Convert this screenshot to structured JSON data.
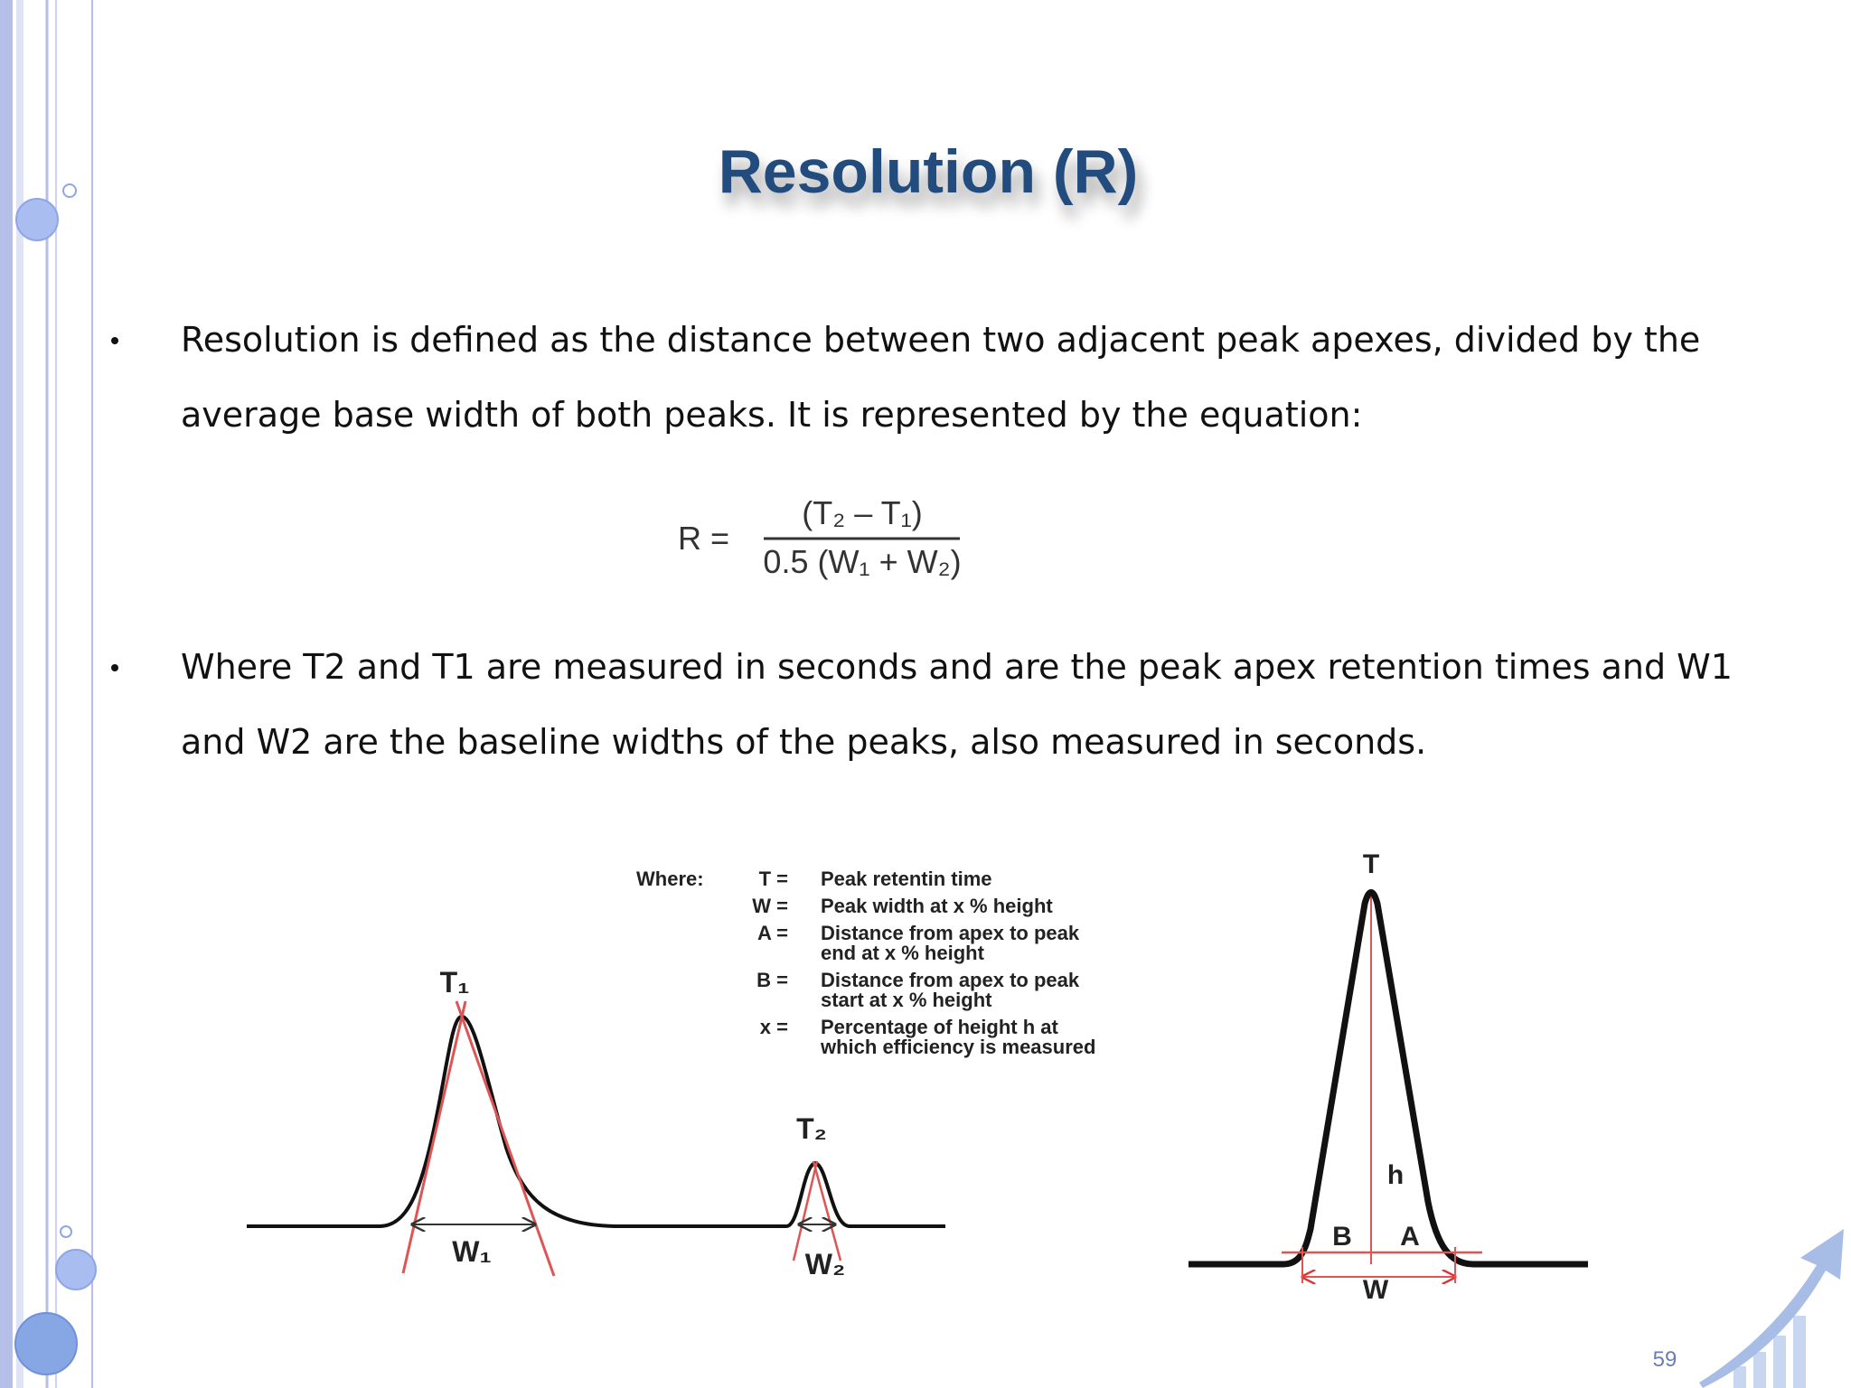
{
  "slide": {
    "title": "Resolution (R)",
    "bullets": [
      {
        "lines": [
          "Resolution is defined as the distance between two adjacent peak apexes, divided by the",
          "average base width of both peaks. It is represented by the equation:"
        ]
      },
      {
        "lines": [
          "Where T2 and T1 are measured in seconds and are the peak apex retention times and W1",
          "and W2 are the baseline widths of the peaks, also measured in seconds."
        ]
      }
    ],
    "equation": {
      "lhs": "R =",
      "numerator": "(T₂ – T₁)",
      "denominator": "0.5 (W₁ + W₂)"
    },
    "figure": {
      "legend_heading": "Where:",
      "legend": [
        {
          "term": "T =",
          "lines": [
            "Peak retentin time"
          ]
        },
        {
          "term": "W =",
          "lines": [
            "Peak width at x % height"
          ]
        },
        {
          "term": "A =",
          "lines": [
            "Distance from apex to peak",
            "end at x % height"
          ]
        },
        {
          "term": "B =",
          "lines": [
            "Distance from apex to peak",
            "start at x % height"
          ]
        },
        {
          "term": "x =",
          "lines": [
            "Percentage of height h at",
            "which efficiency is measured"
          ]
        }
      ],
      "peak_labels": {
        "t1": "T₁",
        "w1": "W₁",
        "t2": "T₂",
        "w2": "W₂"
      },
      "efficiency_labels": {
        "t": "T",
        "h": "h",
        "b": "B",
        "a": "A",
        "w": "W"
      }
    },
    "page_number": "59"
  }
}
